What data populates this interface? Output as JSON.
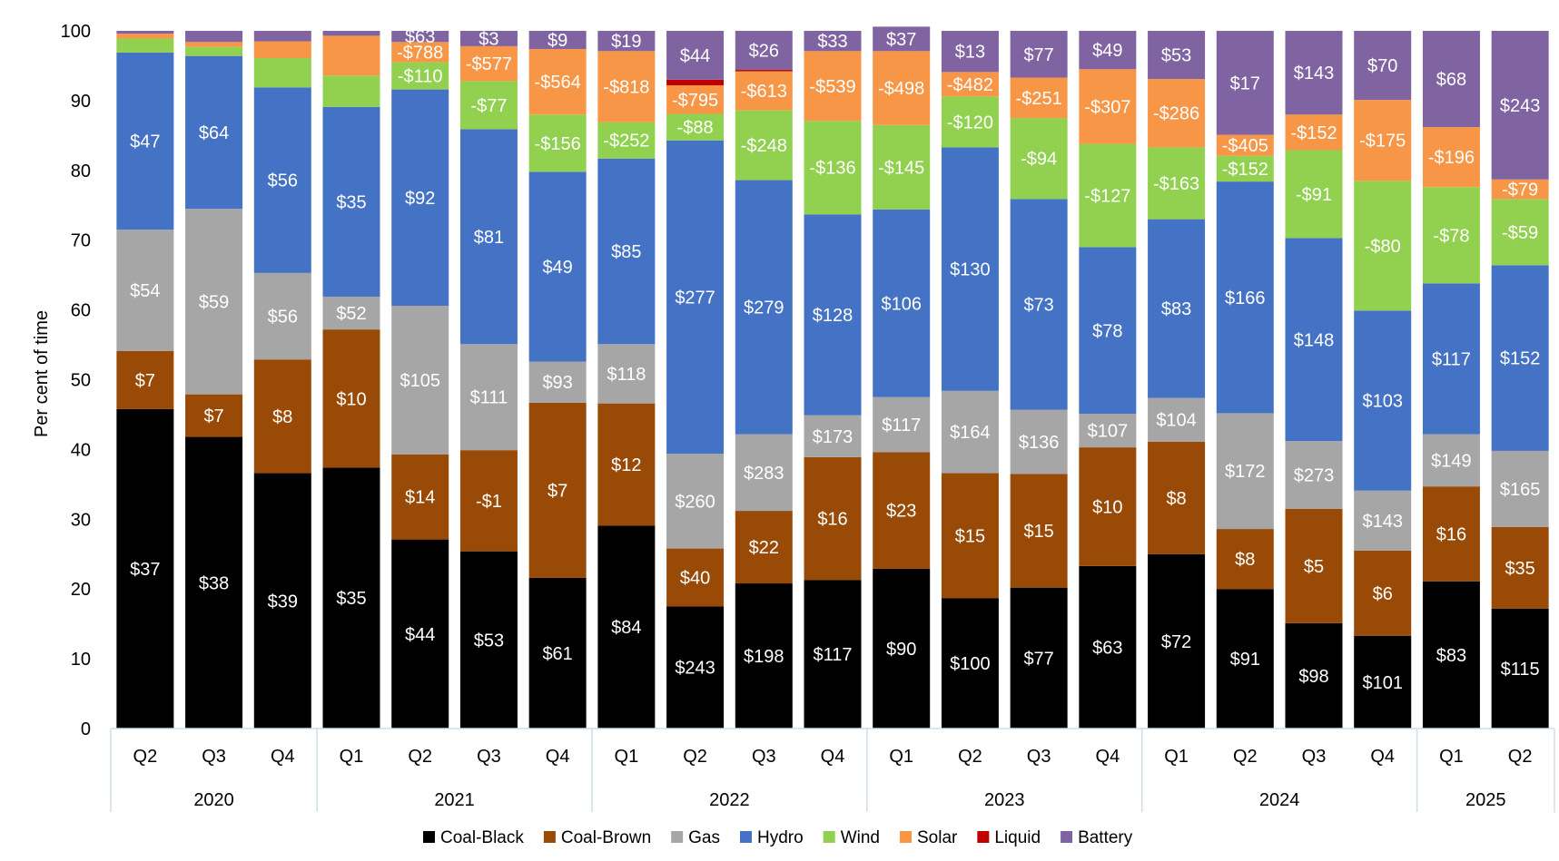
{
  "chart_data": {
    "type": "bar",
    "stacked": true,
    "ylabel": "Per cent of time",
    "ylim": [
      0,
      100
    ],
    "yticks": [
      0,
      10,
      20,
      30,
      40,
      50,
      60,
      70,
      80,
      90,
      100
    ],
    "grid": false,
    "legend_position": "bottom",
    "year_groups": [
      {
        "label": "2020",
        "count": 3
      },
      {
        "label": "2021",
        "count": 4
      },
      {
        "label": "2022",
        "count": 4
      },
      {
        "label": "2023",
        "count": 4
      },
      {
        "label": "2024",
        "count": 4
      },
      {
        "label": "2025",
        "count": 2
      }
    ],
    "categories": [
      "Q2",
      "Q3",
      "Q4",
      "Q1",
      "Q2",
      "Q3",
      "Q4",
      "Q1",
      "Q2",
      "Q3",
      "Q4",
      "Q1",
      "Q2",
      "Q3",
      "Q4",
      "Q1",
      "Q2",
      "Q3",
      "Q4",
      "Q1",
      "Q2"
    ],
    "series": [
      {
        "name": "Coal-Black",
        "color": "#000000",
        "label_color": "#ffffff",
        "values": [
          45.8,
          41.8,
          36.6,
          37.4,
          27.1,
          25.4,
          21.6,
          29.1,
          17.5,
          20.8,
          21.3,
          22.9,
          18.7,
          20.2,
          23.3,
          25.0,
          20.0,
          15.1,
          13.3,
          21.1,
          17.2
        ],
        "labels": [
          "$37",
          "$38",
          "$39",
          "$35",
          "$44",
          "$53",
          "$61",
          "$84",
          "$243",
          "$198",
          "$117",
          "$90",
          "$100",
          "$77",
          "$63",
          "$72",
          "$91",
          "$98",
          "$101",
          "$83",
          "$115"
        ]
      },
      {
        "name": "Coal-Brown",
        "color": "#994a07",
        "label_color": "#ffffff",
        "values": [
          8.3,
          6.1,
          16.3,
          19.8,
          12.2,
          14.5,
          25.1,
          17.5,
          8.3,
          10.4,
          17.6,
          16.7,
          17.9,
          16.3,
          17.0,
          16.1,
          8.6,
          16.4,
          12.2,
          13.6,
          11.7
        ],
        "labels": [
          "$7",
          "$7",
          "$8",
          "$10",
          "$14",
          "-$1",
          "$7",
          "$12",
          "$40",
          "$22",
          "$16",
          "$23",
          "$15",
          "$15",
          "$10",
          "$8",
          "$8",
          "$5",
          "$6",
          "$16",
          "$35"
        ]
      },
      {
        "name": "Gas",
        "color": "#a6a6a6",
        "label_color": "#ffffff",
        "values": [
          17.4,
          26.6,
          12.4,
          4.7,
          21.3,
          15.2,
          5.9,
          8.5,
          13.6,
          11.0,
          6.0,
          7.9,
          11.8,
          9.2,
          4.8,
          6.3,
          16.6,
          9.7,
          8.6,
          7.5,
          10.9
        ],
        "labels": [
          "$54",
          "$59",
          "$56",
          "$52",
          "$105",
          "$111",
          "$93",
          "$118",
          "$260",
          "$283",
          "$173",
          "$117",
          "$164",
          "$136",
          "$107",
          "$104",
          "$172",
          "$273",
          "$143",
          "$149",
          "$165"
        ]
      },
      {
        "name": "Hydro",
        "color": "#4472c4",
        "label_color": "#ffffff",
        "values": [
          25.4,
          21.9,
          26.6,
          27.2,
          31.0,
          30.8,
          27.2,
          26.6,
          44.9,
          36.4,
          28.8,
          26.9,
          34.9,
          30.2,
          23.9,
          25.6,
          33.2,
          29.1,
          25.8,
          21.6,
          26.6
        ],
        "labels": [
          "$47",
          "$64",
          "$56",
          "$35",
          "$92",
          "$81",
          "$49",
          "$85",
          "$277",
          "$279",
          "$128",
          "$106",
          "$130",
          "$73",
          "$78",
          "$83",
          "$166",
          "$148",
          "$103",
          "$117",
          "$152"
        ]
      },
      {
        "name": "Wind",
        "color": "#92d050",
        "label_color": "#ffffff",
        "values": [
          2.0,
          1.3,
          4.2,
          4.5,
          3.9,
          6.9,
          8.2,
          5.2,
          3.8,
          10.0,
          13.4,
          12.1,
          7.3,
          11.6,
          14.8,
          10.3,
          3.7,
          12.6,
          18.6,
          13.8,
          9.5
        ],
        "labels": [
          "",
          "",
          "",
          "",
          "-$110",
          "-$77",
          "-$156",
          "-$252",
          "-$88",
          "-$248",
          "-$136",
          "-$145",
          "-$120",
          "-$94",
          "-$127",
          "-$163",
          "-$152",
          "-$91",
          "-$80",
          "-$78",
          "-$59"
        ]
      },
      {
        "name": "Solar",
        "color": "#f79646",
        "label_color": "#ffffff",
        "values": [
          0.7,
          0.7,
          2.4,
          5.7,
          2.9,
          5.0,
          9.4,
          10.2,
          4.1,
          5.6,
          10.0,
          10.6,
          3.5,
          5.8,
          10.7,
          9.8,
          3.0,
          5.1,
          11.6,
          8.6,
          2.8
        ],
        "labels": [
          "",
          "",
          "",
          "",
          "-$788",
          "-$577",
          "-$564",
          "-$818",
          "-$795",
          "-$613",
          "-$539",
          "-$498",
          "-$482",
          "-$251",
          "-$307",
          "-$286",
          "-$405",
          "-$152",
          "-$175",
          "-$196",
          "-$79"
        ]
      },
      {
        "name": "Liquid",
        "color": "#c00000",
        "label_color": "#ffffff",
        "values": [
          0,
          0,
          0,
          0,
          0,
          0,
          0,
          0,
          0.8,
          0.2,
          0,
          0,
          0,
          0,
          0,
          0,
          0,
          0,
          0,
          0,
          0
        ],
        "labels": [
          "",
          "",
          "",
          "",
          "",
          "",
          "",
          "",
          "",
          "",
          "",
          "",
          "",
          "",
          "",
          "",
          "",
          "",
          "",
          "",
          ""
        ]
      },
      {
        "name": "Battery",
        "color": "#8064a2",
        "label_color": "#ffffff",
        "values": [
          0.4,
          1.6,
          1.5,
          0.7,
          1.6,
          2.2,
          2.6,
          2.9,
          7.0,
          5.6,
          2.9,
          3.5,
          5.9,
          6.7,
          5.5,
          6.9,
          14.9,
          12.0,
          9.9,
          13.8,
          21.3
        ],
        "labels": [
          "",
          "",
          "",
          "",
          "$63",
          "$3",
          "$9",
          "$19",
          "$44",
          "$26",
          "$33",
          "$37",
          "$13",
          "$77",
          "$49",
          "$53",
          "$17",
          "$143",
          "$70",
          "$68",
          "$243"
        ]
      }
    ]
  }
}
